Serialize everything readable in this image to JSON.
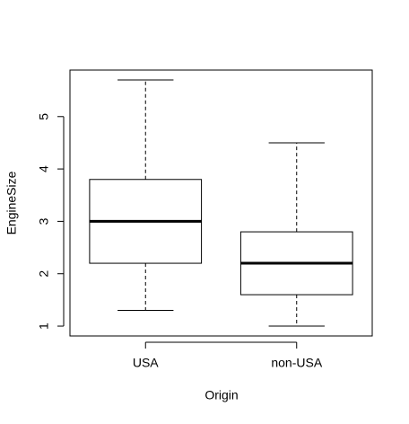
{
  "chart_data": {
    "type": "boxplot",
    "x_label": "Origin",
    "y_label": "EngineSize",
    "categories": [
      "USA",
      "non-USA"
    ],
    "boxes": [
      {
        "min": 1.3,
        "q1": 2.2,
        "median": 3.0,
        "q3": 3.8,
        "max": 5.7
      },
      {
        "min": 1.0,
        "q1": 1.6,
        "median": 2.2,
        "q3": 2.8,
        "max": 4.5
      }
    ],
    "ylim": [
      0.812,
      5.888
    ],
    "yticks": [
      1,
      2,
      3,
      4,
      5
    ],
    "color": "#000000"
  }
}
